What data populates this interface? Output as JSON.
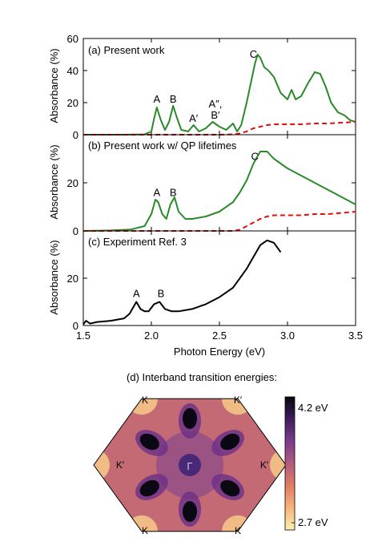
{
  "colors": {
    "present": "#2a8a2a",
    "dashed": "#e01010",
    "experiment": "#000000",
    "colormap": [
      "#fcefb0",
      "#f6b27a",
      "#e07a64",
      "#b05a80",
      "#7a3c8c",
      "#3e1c5a",
      "#08060e"
    ]
  },
  "chart_data": [
    {
      "type": "line",
      "panel": "a",
      "annotation": "(a) Present work",
      "ylabel": "Absorbance (%)",
      "ylim": [
        0,
        60
      ],
      "yticks": [
        "0",
        "20",
        "40",
        "60"
      ],
      "xlim": [
        1.5,
        3.5
      ],
      "peak_labels": [
        {
          "text": "A",
          "x": 2.04,
          "y": 20
        },
        {
          "text": "B",
          "x": 2.16,
          "y": 20
        },
        {
          "text": "A′",
          "x": 2.31,
          "y": 8
        },
        {
          "text": "A″,",
          "x": 2.47,
          "y": 17
        },
        {
          "text": "B′",
          "x": 2.47,
          "y": 10
        },
        {
          "text": "C",
          "x": 2.75,
          "y": 48
        }
      ],
      "series": [
        {
          "style": "solid",
          "x": [
            1.5,
            1.8,
            1.95,
            2.0,
            2.02,
            2.04,
            2.07,
            2.1,
            2.13,
            2.16,
            2.19,
            2.22,
            2.27,
            2.31,
            2.35,
            2.4,
            2.45,
            2.5,
            2.55,
            2.6,
            2.63,
            2.66,
            2.7,
            2.73,
            2.76,
            2.78,
            2.8,
            2.83,
            2.86,
            2.9,
            2.95,
            3.0,
            3.03,
            3.06,
            3.1,
            3.15,
            3.2,
            3.24,
            3.28,
            3.32,
            3.37,
            3.42,
            3.46,
            3.5
          ],
          "y": [
            0,
            0,
            0.2,
            2,
            10,
            17,
            9,
            3,
            8,
            18,
            10,
            3,
            2,
            6,
            2,
            4,
            8,
            5,
            3,
            7,
            2,
            6,
            20,
            32,
            44,
            50,
            48,
            42,
            40,
            36,
            26,
            22,
            28,
            22,
            24,
            32,
            39,
            38,
            30,
            20,
            14,
            12,
            9,
            8
          ]
        },
        {
          "style": "dashed",
          "x": [
            1.5,
            2.5,
            2.6,
            2.65,
            2.7,
            2.75,
            2.8,
            2.85,
            2.9,
            3.0,
            3.1,
            3.2,
            3.3,
            3.4,
            3.5
          ],
          "y": [
            0,
            0,
            0.2,
            0.8,
            2,
            4,
            5,
            6,
            6.5,
            6.5,
            6.5,
            7,
            7,
            7.5,
            8
          ]
        }
      ]
    },
    {
      "type": "line",
      "panel": "b",
      "annotation": "(b) Present work w/ QP lifetimes",
      "ylabel": "Absorbance (%)",
      "ylim": [
        0,
        40
      ],
      "yticks": [
        "0",
        "20"
      ],
      "xlim": [
        1.5,
        3.5
      ],
      "peak_labels": [
        {
          "text": "A",
          "x": 2.04,
          "y": 14.5
        },
        {
          "text": "B",
          "x": 2.16,
          "y": 14.5
        },
        {
          "text": "C",
          "x": 2.76,
          "y": 29.5
        }
      ],
      "series": [
        {
          "style": "solid",
          "x": [
            1.5,
            1.7,
            1.85,
            1.95,
            2.0,
            2.03,
            2.05,
            2.08,
            2.11,
            2.14,
            2.17,
            2.2,
            2.25,
            2.3,
            2.4,
            2.5,
            2.6,
            2.65,
            2.7,
            2.75,
            2.8,
            2.85,
            2.9,
            3.0,
            3.1,
            3.2,
            3.3,
            3.4,
            3.5
          ],
          "y": [
            0,
            0.2,
            0.6,
            2,
            7,
            13,
            12,
            7,
            5,
            11,
            14,
            8,
            5,
            5,
            6,
            8,
            12,
            16,
            21,
            28,
            33,
            33,
            30,
            26,
            23,
            20,
            17,
            14,
            11
          ]
        },
        {
          "style": "dashed",
          "x": [
            1.5,
            2.6,
            2.65,
            2.7,
            2.75,
            2.8,
            2.85,
            2.9,
            3.0,
            3.1,
            3.2,
            3.3,
            3.4,
            3.5
          ],
          "y": [
            0,
            0,
            0.5,
            2,
            3.5,
            5,
            6,
            6.5,
            6.5,
            6.5,
            7,
            7,
            7.5,
            8
          ]
        }
      ]
    },
    {
      "type": "line",
      "panel": "c",
      "annotation": "(c) Experiment Ref. 3",
      "ylabel": "Absorbance (%)",
      "xlabel": "Photon Energy (eV)",
      "ylim": [
        0,
        40
      ],
      "yticks": [
        "0",
        "20"
      ],
      "xlim": [
        1.5,
        3.5
      ],
      "xticks": [
        "1.5",
        "2.0",
        "2.5",
        "3.0",
        "3.5"
      ],
      "peak_labels": [
        {
          "text": "A",
          "x": 1.89,
          "y": 12
        },
        {
          "text": "B",
          "x": 2.07,
          "y": 12
        }
      ],
      "series": [
        {
          "style": "solid",
          "x": [
            1.5,
            1.52,
            1.55,
            1.6,
            1.7,
            1.8,
            1.84,
            1.87,
            1.89,
            1.92,
            1.95,
            1.98,
            2.02,
            2.06,
            2.1,
            2.15,
            2.2,
            2.3,
            2.4,
            2.5,
            2.6,
            2.7,
            2.75,
            2.8,
            2.85,
            2.9,
            2.95
          ],
          "y": [
            0.5,
            2,
            0.8,
            1.5,
            2,
            3,
            5,
            8,
            10,
            7,
            6,
            6,
            9,
            10,
            7,
            6,
            6,
            7,
            9,
            12,
            16,
            24,
            29,
            34,
            36,
            35,
            31
          ]
        }
      ]
    }
  ],
  "inset": {
    "title": "(d) Interband transition energies:",
    "center_label": "Γ",
    "corner_labels": [
      "K",
      "K′",
      "K′",
      "K",
      "K",
      "K′"
    ],
    "colorbar_max": "4.2 eV",
    "colorbar_min": "2.7 eV"
  }
}
